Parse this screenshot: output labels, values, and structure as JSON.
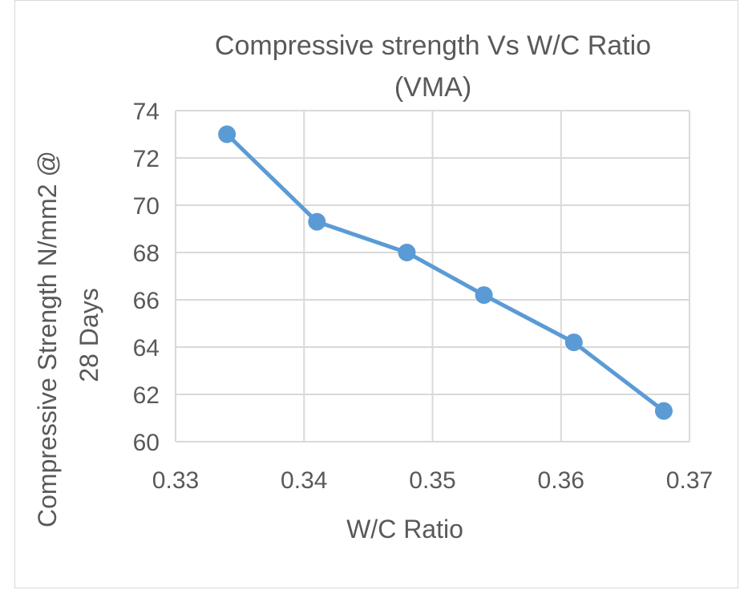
{
  "chart_data": {
    "type": "line",
    "title": [
      "Compressive strength Vs W/C Ratio",
      "(VMA)"
    ],
    "xlabel": "W/C Ratio",
    "ylabel": [
      "Compressive Strength N/mm2 @",
      "28 Days"
    ],
    "xlim": [
      0.33,
      0.37
    ],
    "ylim": [
      60,
      74
    ],
    "x_ticks": [
      "0.33",
      "0.34",
      "0.35",
      "0.36",
      "0.37"
    ],
    "x_tick_values": [
      0.33,
      0.34,
      0.35,
      0.36,
      0.37
    ],
    "y_ticks": [
      "60",
      "62",
      "64",
      "66",
      "68",
      "70",
      "72",
      "74"
    ],
    "y_tick_values": [
      60,
      62,
      64,
      66,
      68,
      70,
      72,
      74
    ],
    "grid": true,
    "legend": "none",
    "series": [
      {
        "x": [
          0.334,
          0.341,
          0.348,
          0.354,
          0.361,
          0.368
        ],
        "y": [
          73.0,
          69.3,
          68.0,
          66.2,
          64.2,
          61.3
        ],
        "color": "#5b9bd5",
        "marker": "circle"
      }
    ],
    "colors": {
      "series": "#5b9bd5",
      "grid": "#d9d9d9",
      "text": "#595959"
    }
  }
}
